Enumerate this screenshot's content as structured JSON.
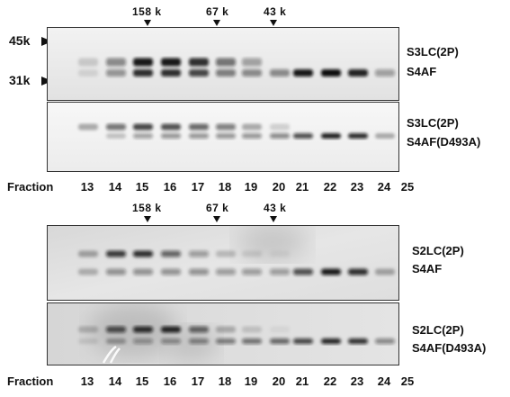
{
  "mw_labels": {
    "top": "45k",
    "bottom": "31k"
  },
  "size_markers": [
    {
      "text": "158 k"
    },
    {
      "text": "67 k"
    },
    {
      "text": "43 k"
    }
  ],
  "blots": [
    {
      "upper_band": "S3LC(2P)",
      "lower_band": "S4AF"
    },
    {
      "upper_band": "S3LC(2P)",
      "lower_band": "S4AF(D493A)"
    },
    {
      "upper_band": "S2LC(2P)",
      "lower_band": "S4AF"
    },
    {
      "upper_band": "S2LC(2P)",
      "lower_band": "S4AF(D493A)"
    }
  ],
  "fraction_label": "Fraction",
  "fractions": [
    "13",
    "14",
    "15",
    "16",
    "17",
    "18",
    "19",
    "20",
    "21",
    "22",
    "23",
    "24",
    "25"
  ],
  "band_intensity": {
    "blot1_upper": [
      0.15,
      0.45,
      0.95,
      0.95,
      0.85,
      0.55,
      0.35,
      0,
      0,
      0,
      0,
      0,
      0
    ],
    "blot1_lower": [
      0.1,
      0.4,
      0.85,
      0.85,
      0.75,
      0.5,
      0.45,
      0.45,
      0.95,
      1.0,
      0.9,
      0.35,
      0.05
    ],
    "blot2_upper": [
      0.3,
      0.55,
      0.75,
      0.7,
      0.6,
      0.5,
      0.3,
      0.15,
      0,
      0,
      0,
      0,
      0
    ],
    "blot2_lower": [
      0,
      0.2,
      0.35,
      0.4,
      0.4,
      0.4,
      0.4,
      0.45,
      0.7,
      0.9,
      0.85,
      0.3,
      0.05
    ],
    "blot3_upper": [
      0.3,
      0.8,
      0.85,
      0.6,
      0.35,
      0.2,
      0.1,
      0.05,
      0,
      0,
      0,
      0,
      0
    ],
    "blot3_lower": [
      0.25,
      0.4,
      0.4,
      0.4,
      0.4,
      0.35,
      0.35,
      0.35,
      0.7,
      0.95,
      0.85,
      0.3,
      0.05
    ],
    "blot4_upper": [
      0.2,
      0.7,
      0.85,
      0.9,
      0.6,
      0.25,
      0.15,
      0.05,
      0,
      0,
      0,
      0,
      0
    ],
    "blot4_lower": [
      0.1,
      0.3,
      0.35,
      0.4,
      0.45,
      0.5,
      0.55,
      0.6,
      0.75,
      0.9,
      0.85,
      0.45,
      0.05
    ]
  },
  "colors": {
    "band": "#111111",
    "background_top": "#f4f4f4",
    "background_bottom": "#dcdcdc"
  }
}
